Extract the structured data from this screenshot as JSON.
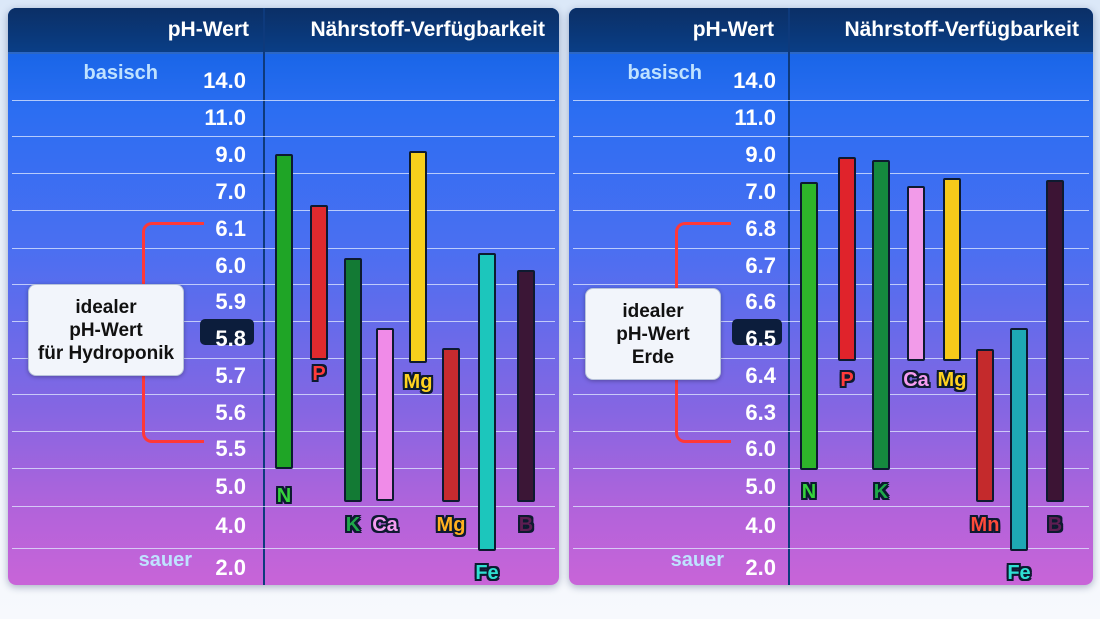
{
  "panels": [
    {
      "header_ph": "pH-Wert",
      "header_nutrients": "Nährstoff-Verfügbarkeit",
      "top_label": "basisch",
      "bottom_label": "sauer",
      "ticks": [
        "14.0",
        "11.0",
        "9.0",
        "7.0",
        "6.1",
        "6.0",
        "5.9",
        "5.8",
        "5.7",
        "5.6",
        "5.5",
        "5.0",
        "4.0",
        "2.0"
      ],
      "highlight_tick": "5.8",
      "ideal_lines": [
        "idealer",
        "pH-Wert",
        "für Hydroponik"
      ],
      "ideal_range": [
        "5.5",
        "6.1"
      ],
      "nutrients": [
        {
          "name": "N",
          "color": "#1fa526",
          "label_color": "#36d13c",
          "top": "9.0",
          "bottom": "5.0"
        },
        {
          "name": "P",
          "color": "#e02a2e",
          "label_color": "#ff3b3b",
          "top": "6.1~7.0",
          "bottom": "5.8"
        },
        {
          "name": "K",
          "color": "#137a34",
          "label_color": "#1fa84a",
          "top": "6.0",
          "bottom": "4.0"
        },
        {
          "name": "Ca",
          "color": "#f08be8",
          "label_color": "#f59cf0",
          "top": "5.8~5.9",
          "bottom": "4.0"
        },
        {
          "name": "Mg",
          "color": "#f7cf1c",
          "label_color": "#ffd21f",
          "top": "9.0",
          "bottom": "5.8"
        },
        {
          "name": "Mg",
          "color": "#c72b2f",
          "label_color": "#ffb01f",
          "top": "5.8",
          "bottom": "4.0"
        },
        {
          "name": "Fe",
          "color": "#1cc6bc",
          "label_color": "#2fe0d3",
          "top": "6.1",
          "bottom": "2.0"
        },
        {
          "name": "B",
          "color": "#3b1636",
          "label_color": "#5e1d52",
          "top": "6.0",
          "bottom": "4.0"
        }
      ]
    },
    {
      "header_ph": "pH-Wert",
      "header_nutrients": "Nährstoff-Verfügbarkeit",
      "top_label": "basisch",
      "bottom_label": "sauer",
      "ticks": [
        "14.0",
        "11.0",
        "9.0",
        "7.0",
        "6.8",
        "6.7",
        "6.6",
        "6.5",
        "6.4",
        "6.3",
        "6.0",
        "5.0",
        "4.0",
        "2.0"
      ],
      "highlight_tick": "6.5",
      "ideal_lines": [
        "idealer",
        "pH-Wert",
        "Erde"
      ],
      "ideal_range": [
        "6.0",
        "6.8"
      ],
      "nutrients": [
        {
          "name": "N",
          "color": "#2eb52a",
          "label_color": "#36d13c",
          "top": "7.0",
          "bottom": "5.0"
        },
        {
          "name": "P",
          "color": "#e0232b",
          "label_color": "#ff3b3b",
          "top": "9.0",
          "bottom": "6.5"
        },
        {
          "name": "K",
          "color": "#158a3e",
          "label_color": "#1fa84a",
          "top": "9.0",
          "bottom": "5.0"
        },
        {
          "name": "Ca",
          "color": "#f29be9",
          "label_color": "#f59cf0",
          "top": "7.0",
          "bottom": "6.5"
        },
        {
          "name": "Mg",
          "color": "#f7c91a",
          "label_color": "#ffd21f",
          "top": "7.0",
          "bottom": "6.5"
        },
        {
          "name": "Mn",
          "color": "#c42a2c",
          "label_color": "#ff4a3a",
          "top": "6.5",
          "bottom": "4.0"
        },
        {
          "name": "Fe",
          "color": "#1ea8b4",
          "label_color": "#2fe0d3",
          "top": "6.5",
          "bottom": "2.0"
        },
        {
          "name": "B",
          "color": "#3c1434",
          "label_color": "#5e1d52",
          "top": "7.0",
          "bottom": "4.0"
        }
      ]
    }
  ]
}
